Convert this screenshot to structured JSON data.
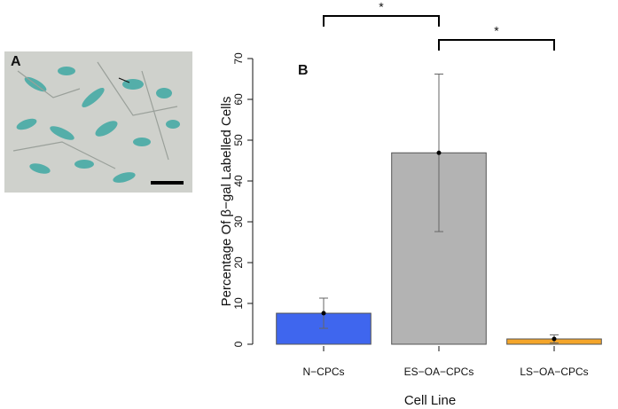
{
  "panel_a": {
    "label": "A"
  },
  "chart_data": {
    "type": "bar",
    "panel_label": "B",
    "categories": [
      "N−CPCs",
      "ES−OA−CPCs",
      "LS−OA−CPCs"
    ],
    "values": [
      7.6,
      46.9,
      1.3
    ],
    "errors": [
      3.7,
      19.3,
      1.0
    ],
    "colors": [
      "#3f66ee",
      "#b3b3b3",
      "#f4a52a"
    ],
    "xlabel": "Cell Line",
    "ylabel": "Percentage Of β−gal Labelled Cells",
    "ylim": [
      0,
      70
    ],
    "yticks": [
      0,
      10,
      20,
      30,
      40,
      50,
      60,
      70
    ],
    "annotations": [
      "*",
      "*"
    ]
  }
}
